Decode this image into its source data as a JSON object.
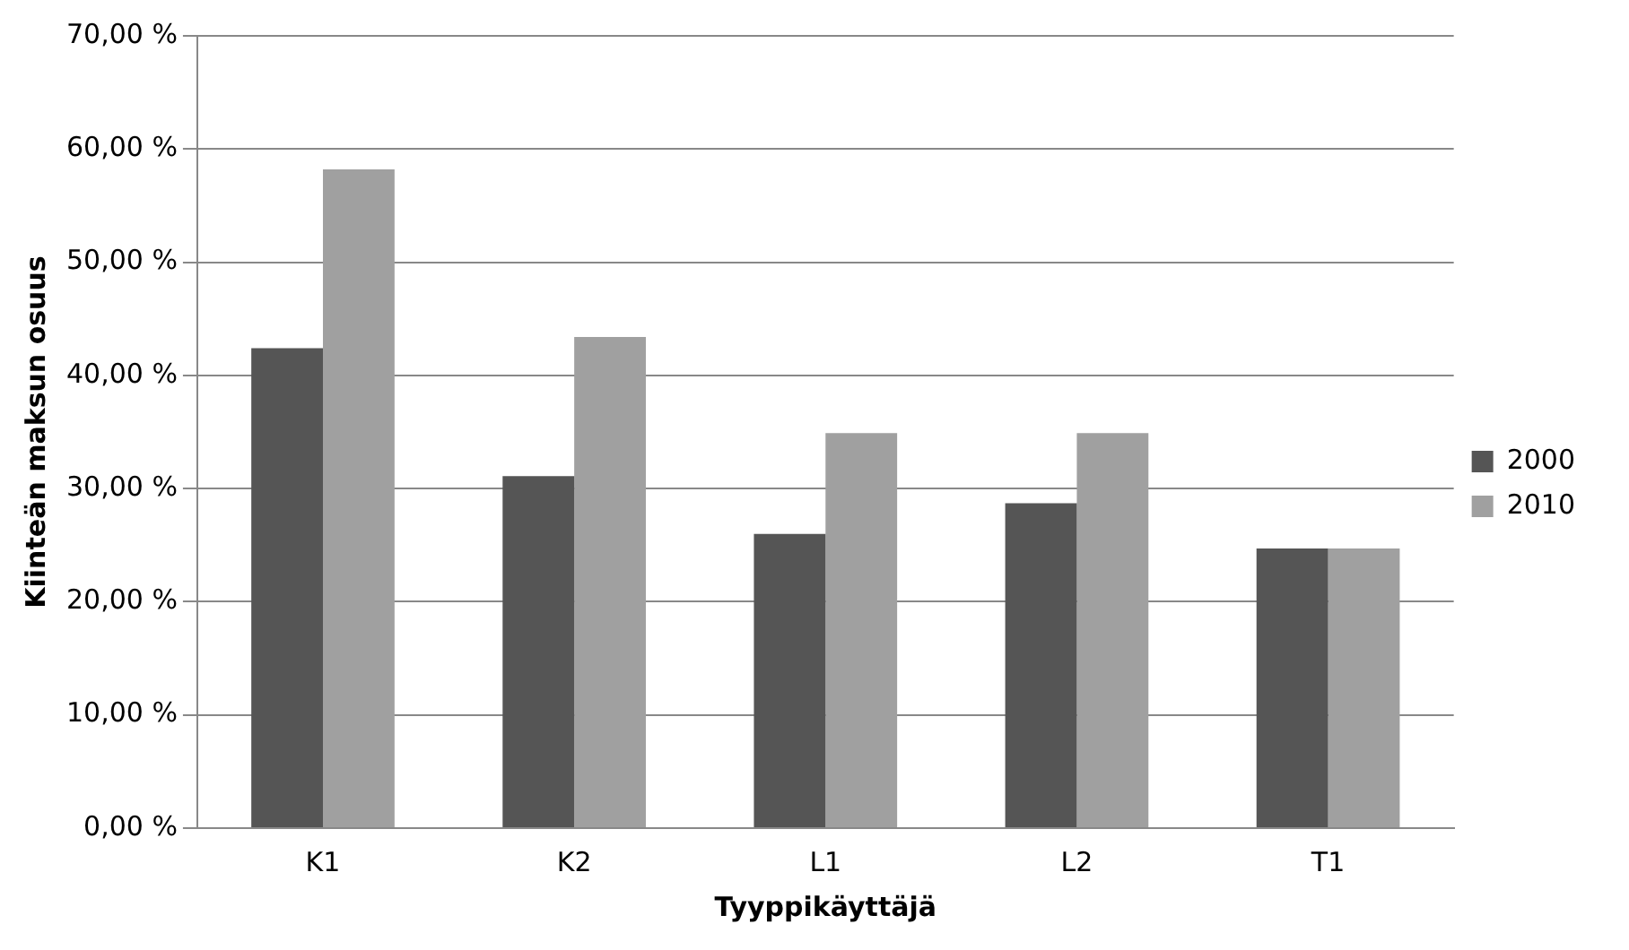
{
  "chart_data": {
    "type": "bar",
    "xlabel": "Tyyppikäyttäjä",
    "ylabel": "Kiinteän maksun osuus",
    "categories": [
      "K1",
      "K2",
      "L1",
      "L2",
      "T1"
    ],
    "series": [
      {
        "name": "2000",
        "color": "#555555",
        "values": [
          42.4,
          31.1,
          26.0,
          28.7,
          24.7
        ]
      },
      {
        "name": "2010",
        "color": "#a0a0a0",
        "values": [
          58.2,
          43.4,
          34.9,
          34.9,
          24.7
        ]
      }
    ],
    "ylim": [
      0,
      70
    ],
    "yticks": [
      {
        "value": 0,
        "label": "0,00 %"
      },
      {
        "value": 10,
        "label": "10,00 %"
      },
      {
        "value": 20,
        "label": "20,00 %"
      },
      {
        "value": 30,
        "label": "30,00 %"
      },
      {
        "value": 40,
        "label": "40,00 %"
      },
      {
        "value": 50,
        "label": "50,00 %"
      },
      {
        "value": 60,
        "label": "60,00 %"
      },
      {
        "value": 70,
        "label": "70,00 %"
      }
    ],
    "grid": "y",
    "legend": "right"
  }
}
